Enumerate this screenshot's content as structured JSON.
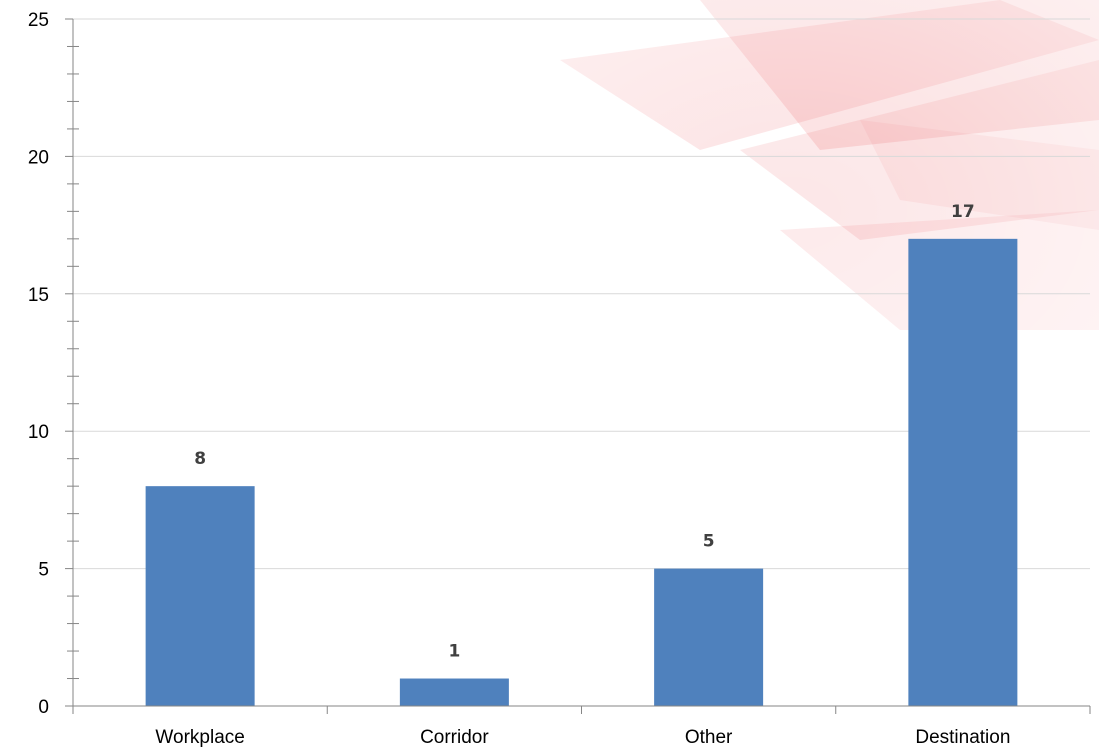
{
  "chart_data": {
    "type": "bar",
    "categories": [
      "Workplace",
      "Corridor",
      "Other",
      "Destination"
    ],
    "values": [
      8,
      1,
      5,
      17
    ],
    "data_labels": [
      "8",
      "1",
      "5",
      "17"
    ],
    "title": "",
    "xlabel": "",
    "ylabel": "",
    "ylim": [
      0,
      25
    ],
    "yticks": [
      0,
      5,
      10,
      15,
      20,
      25
    ],
    "ytick_labels": [
      "0",
      "5",
      "10",
      "15",
      "20",
      "25"
    ],
    "y_minor_step": 1,
    "grid": true,
    "legend": "none",
    "bar_color": "#4f81bd",
    "gridline_color": "#d9d9d9",
    "axis_color": "#868686",
    "background_watermark_color": "#e8303a"
  }
}
